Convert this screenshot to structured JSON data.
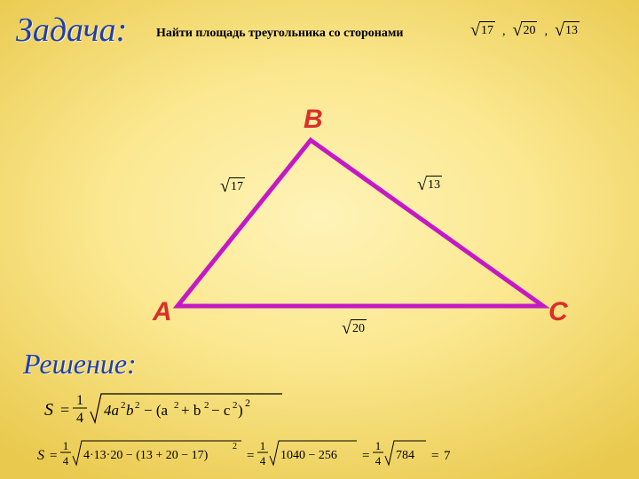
{
  "titles": {
    "zadacha": "Задача:",
    "reshenie": "Решение:"
  },
  "problem": {
    "text": "Найти площадь треугольника со сторонами",
    "sides": [
      "17",
      "20",
      "13"
    ]
  },
  "triangle": {
    "points": {
      "A": [
        50,
        235
      ],
      "B": [
        200,
        48
      ],
      "C": [
        462,
        235
      ]
    },
    "stroke_color": "#c419c4",
    "stroke_width": 5,
    "vertex_labels": {
      "A": "A",
      "B": "B",
      "C": "C"
    },
    "vertex_color": "#d92f2b",
    "side_labels": {
      "AB": "17",
      "BC": "13",
      "AC": "20"
    }
  },
  "formula": {
    "S": "S",
    "eq": "=",
    "frac_num": "1",
    "frac_den": "4",
    "rad1": "4a²b² − (a² + b² − c²)²"
  },
  "calc": {
    "S": "S",
    "frac_num": "1",
    "frac_den": "4",
    "step1_inside": "4·13·20 − (13 + 20 − 17)",
    "step1_exp": "2",
    "step2_inside": "1040 − 256",
    "step3_inside": "784",
    "result": "7"
  },
  "style": {
    "title_color": "#1f3fad",
    "bg_inner": "#fff3b8",
    "bg_outer": "#e9c94e",
    "text_color": "#000000"
  }
}
